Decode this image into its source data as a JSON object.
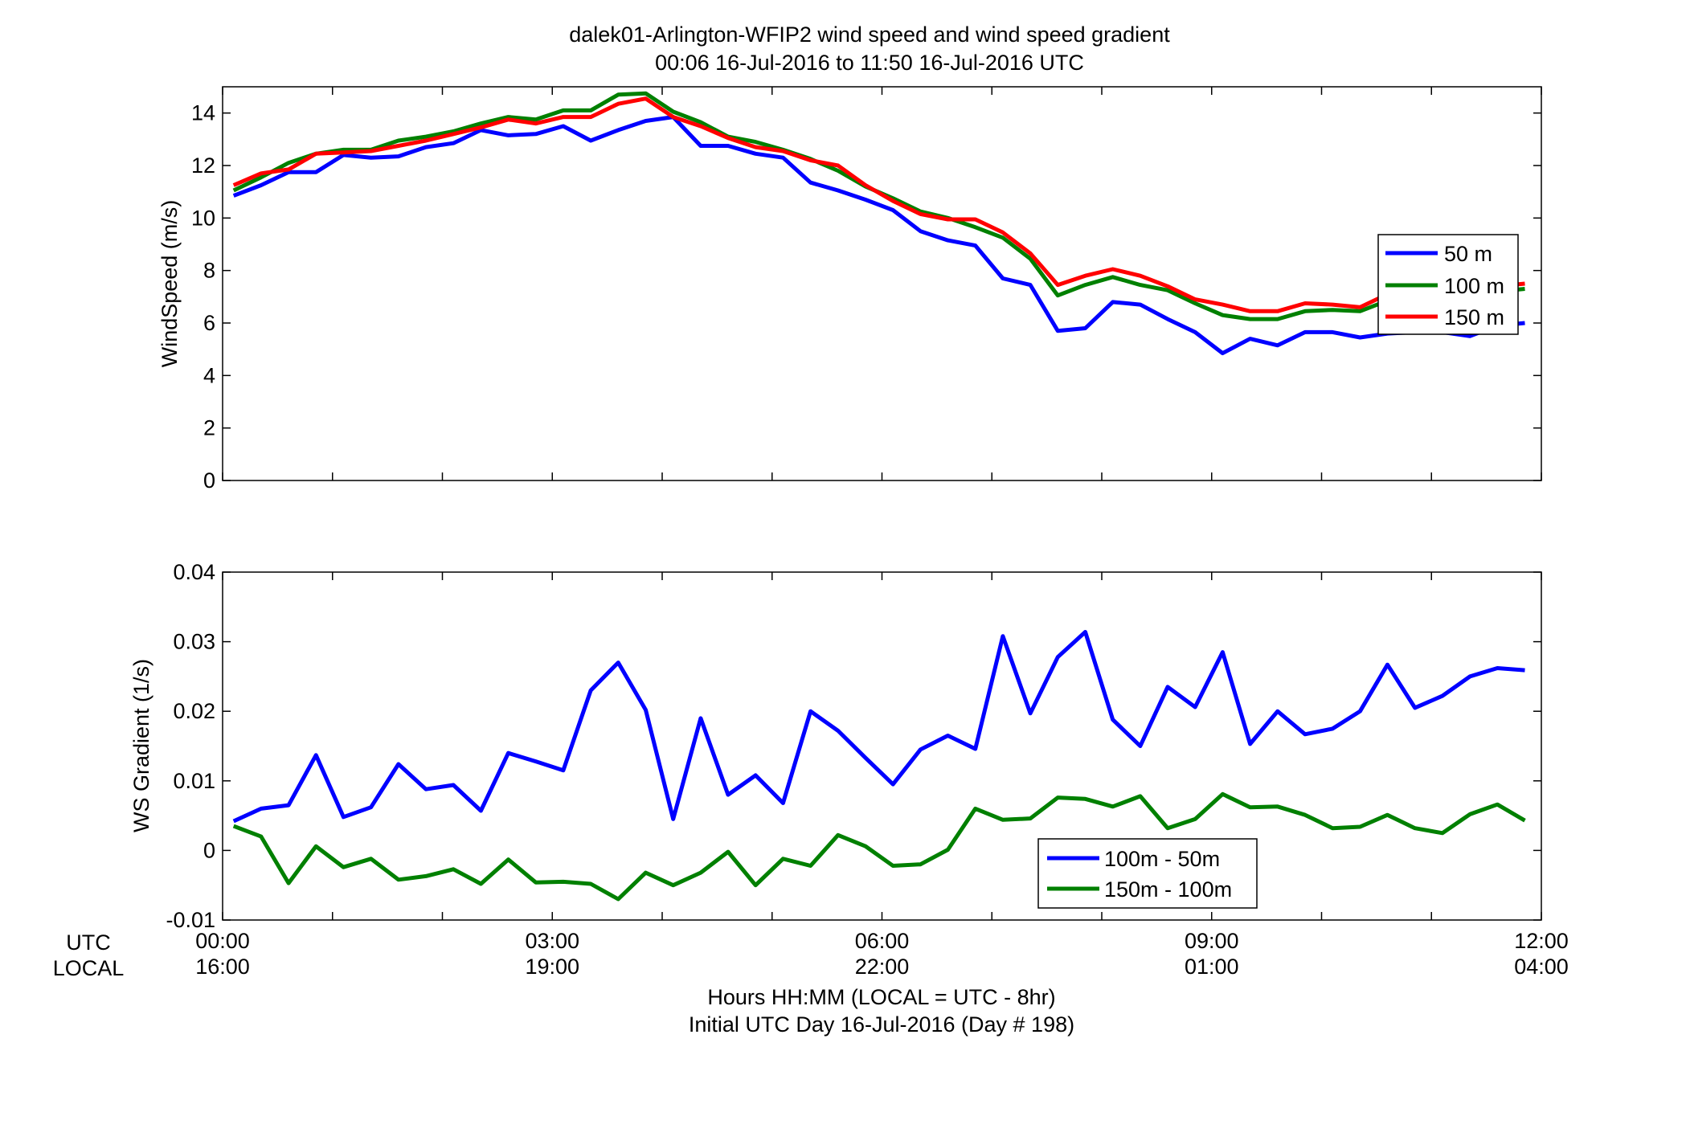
{
  "title_line1": "dalek01-Arlington-WFIP2  wind speed and wind speed gradient",
  "title_line2": "00:06 16-Jul-2016 to 11:50 16-Jul-2016  UTC",
  "xlabel_line1": "Hours HH:MM  (LOCAL = UTC - 8hr)",
  "xlabel_line2": "Initial UTC Day 16-Jul-2016 (Day # 198)",
  "row_labels": {
    "utc": "UTC",
    "local": "LOCAL"
  },
  "x_ticks_utc": [
    "00:00",
    "03:00",
    "06:00",
    "09:00",
    "12:00"
  ],
  "x_ticks_local": [
    "16:00",
    "19:00",
    "22:00",
    "01:00",
    "04:00"
  ],
  "chart_data": [
    {
      "type": "line",
      "ylabel": "WindSpeed (m/s)",
      "xlim": [
        0,
        12
      ],
      "ylim": [
        0,
        15
      ],
      "yticks": [
        "0",
        "2",
        "4",
        "6",
        "8",
        "10",
        "12",
        "14"
      ],
      "grid": false,
      "legend_position": "right",
      "x": [
        0.1,
        0.35,
        0.6,
        0.85,
        1.1,
        1.35,
        1.6,
        1.85,
        2.1,
        2.35,
        2.6,
        2.85,
        3.1,
        3.35,
        3.6,
        3.85,
        4.1,
        4.35,
        4.6,
        4.85,
        5.1,
        5.35,
        5.6,
        5.85,
        6.1,
        6.35,
        6.6,
        6.85,
        7.1,
        7.35,
        7.6,
        7.85,
        8.1,
        8.35,
        8.6,
        8.85,
        9.1,
        9.35,
        9.6,
        9.85,
        10.1,
        10.35,
        10.6,
        10.85,
        11.1,
        11.35,
        11.6,
        11.85
      ],
      "series": [
        {
          "name": "50 m",
          "color": "#0000ff",
          "values": [
            10.85,
            11.25,
            11.75,
            11.75,
            12.4,
            12.3,
            12.35,
            12.7,
            12.85,
            13.35,
            13.15,
            13.2,
            13.5,
            12.95,
            13.35,
            13.7,
            13.85,
            12.75,
            12.75,
            12.45,
            12.3,
            11.35,
            11.05,
            10.7,
            10.3,
            9.5,
            9.15,
            8.95,
            7.7,
            7.45,
            5.7,
            5.8,
            6.8,
            6.7,
            6.15,
            5.65,
            4.85,
            5.4,
            5.15,
            5.65,
            5.65,
            5.45,
            5.6,
            5.65,
            5.65,
            5.5,
            5.9,
            6.0
          ]
        },
        {
          "name": "100 m",
          "color": "#008000",
          "values": [
            11.05,
            11.55,
            12.1,
            12.45,
            12.6,
            12.6,
            12.95,
            13.1,
            13.3,
            13.6,
            13.85,
            13.75,
            14.1,
            14.1,
            14.7,
            14.75,
            14.05,
            13.65,
            13.1,
            12.9,
            12.6,
            12.25,
            11.8,
            11.2,
            10.75,
            10.25,
            10.0,
            9.65,
            9.25,
            8.45,
            7.05,
            7.45,
            7.75,
            7.45,
            7.25,
            6.75,
            6.3,
            6.15,
            6.15,
            6.45,
            6.5,
            6.45,
            6.85,
            6.9,
            7.05,
            7.15,
            7.2,
            7.3
          ]
        },
        {
          "name": "150 m",
          "color": "#ff0000",
          "values": [
            11.25,
            11.7,
            11.85,
            12.45,
            12.5,
            12.55,
            12.75,
            12.95,
            13.2,
            13.45,
            13.75,
            13.6,
            13.85,
            13.85,
            14.35,
            14.55,
            13.85,
            13.5,
            13.05,
            12.7,
            12.55,
            12.2,
            12.0,
            11.25,
            10.65,
            10.15,
            9.95,
            9.95,
            9.45,
            8.65,
            7.45,
            7.8,
            8.05,
            7.8,
            7.4,
            6.9,
            6.7,
            6.45,
            6.45,
            6.75,
            6.7,
            6.6,
            7.1,
            7.2,
            7.3,
            7.35,
            7.4,
            7.5
          ]
        }
      ]
    },
    {
      "type": "line",
      "ylabel": "WS Gradient (1/s)",
      "xlim": [
        0,
        12
      ],
      "ylim": [
        -0.01,
        0.04
      ],
      "yticks": [
        "-0.01",
        "0",
        "0.01",
        "0.02",
        "0.03",
        "0.04"
      ],
      "grid": false,
      "legend_position": "bottom-center",
      "x": [
        0.1,
        0.35,
        0.6,
        0.85,
        1.1,
        1.35,
        1.6,
        1.85,
        2.1,
        2.35,
        2.6,
        2.85,
        3.1,
        3.35,
        3.6,
        3.85,
        4.1,
        4.35,
        4.6,
        4.85,
        5.1,
        5.35,
        5.6,
        5.85,
        6.1,
        6.35,
        6.6,
        6.85,
        7.1,
        7.35,
        7.6,
        7.85,
        8.1,
        8.35,
        8.6,
        8.85,
        9.1,
        9.35,
        9.6,
        9.85,
        10.1,
        10.35,
        10.6,
        10.85,
        11.1,
        11.35,
        11.6,
        11.85
      ],
      "series": [
        {
          "name": "100m - 50m",
          "color": "#0000ff",
          "values": [
            0.0042,
            0.006,
            0.0065,
            0.0137,
            0.0048,
            0.0062,
            0.0124,
            0.0088,
            0.0094,
            0.0057,
            0.014,
            0.0128,
            0.0115,
            0.023,
            0.027,
            0.0202,
            0.0045,
            0.019,
            0.008,
            0.0108,
            0.0068,
            0.02,
            0.0172,
            0.0133,
            0.0095,
            0.0145,
            0.0165,
            0.0146,
            0.0308,
            0.0197,
            0.0278,
            0.0314,
            0.0188,
            0.015,
            0.0235,
            0.0206,
            0.0285,
            0.0153,
            0.02,
            0.0167,
            0.0175,
            0.02,
            0.0267,
            0.0205,
            0.0222,
            0.025,
            0.0262,
            0.0259
          ]
        },
        {
          "name": "150m - 100m",
          "color": "#008000",
          "values": [
            0.0035,
            0.002,
            -0.0047,
            0.0006,
            -0.0024,
            -0.0012,
            -0.0042,
            -0.0037,
            -0.0027,
            -0.0048,
            -0.0013,
            -0.0046,
            -0.0045,
            -0.0048,
            -0.007,
            -0.0032,
            -0.005,
            -0.0032,
            -0.0002,
            -0.005,
            -0.0012,
            -0.0022,
            0.0022,
            0.0006,
            -0.0022,
            -0.002,
            0.0001,
            0.006,
            0.0044,
            0.0046,
            0.0076,
            0.0074,
            0.0063,
            0.0078,
            0.0032,
            0.0045,
            0.0081,
            0.0062,
            0.0063,
            0.0051,
            0.0032,
            0.0034,
            0.0051,
            0.0032,
            0.0025,
            0.0052,
            0.0066,
            0.0043
          ]
        }
      ]
    }
  ]
}
